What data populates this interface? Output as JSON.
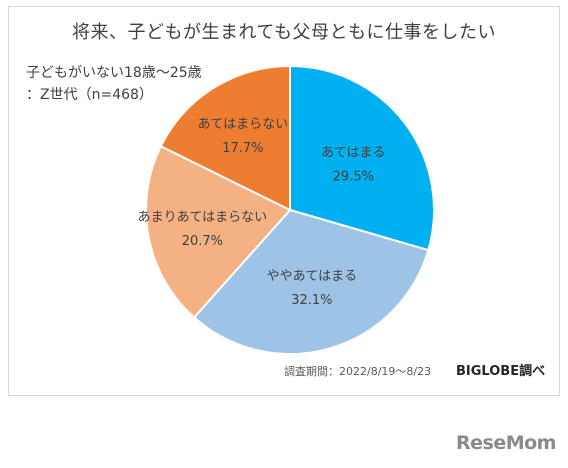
{
  "chart_data": {
    "type": "pie",
    "title": "将来、子どもが生まれても父母ともに仕事をしたい",
    "subtitle_lines": [
      "子どもがいない18歳～25歳",
      "：Z世代（n=468）"
    ],
    "slices": [
      {
        "label": "あてはまる",
        "value": 29.5,
        "value_label": "29.5%",
        "color": "#00b0f0"
      },
      {
        "label": "ややあてはまる",
        "value": 32.1,
        "value_label": "32.1%",
        "color": "#9dc3e6"
      },
      {
        "label": "あまりあてはまらない",
        "value": 20.7,
        "value_label": "20.7%",
        "color": "#f4b183"
      },
      {
        "label": "あてはまらない",
        "value": 17.7,
        "value_label": "17.7%",
        "color": "#ed7d31"
      }
    ],
    "source": "調査期間：2022/8/19～8/23",
    "credit": "BIGLOBE調べ"
  },
  "watermark": "ReseMom"
}
